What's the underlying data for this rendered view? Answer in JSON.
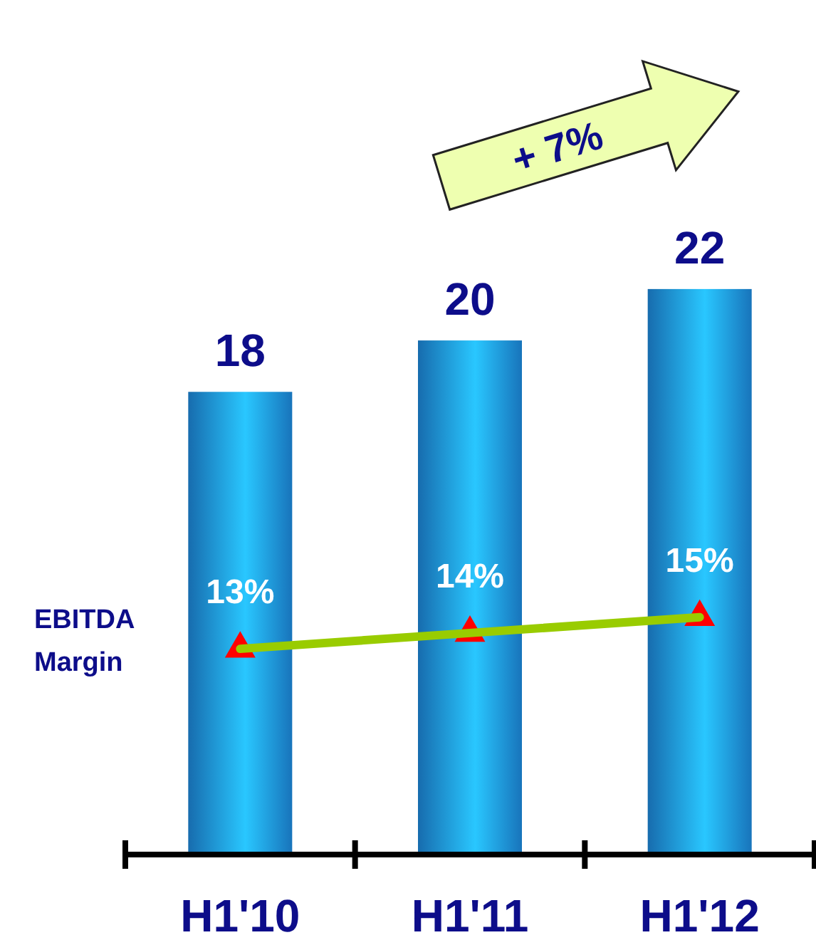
{
  "chart_data": {
    "type": "bar",
    "categories": [
      "H1'10",
      "H1'11",
      "H1'12"
    ],
    "series": [
      {
        "color": "#1e90e8",
        "values": [
          18,
          20,
          22
        ]
      },
      {
        "type": "line",
        "axis": "y2",
        "color": "#99cc00",
        "values": [
          13,
          14,
          15
        ],
        "value_labels": [
          "13%",
          "14%",
          "15%"
        ]
      }
    ],
    "tick_labels": "x",
    "data_labels": true,
    "marker": "triangle",
    "annotations": [
      "EBITDA Margin",
      "+ 7%"
    ]
  }
}
